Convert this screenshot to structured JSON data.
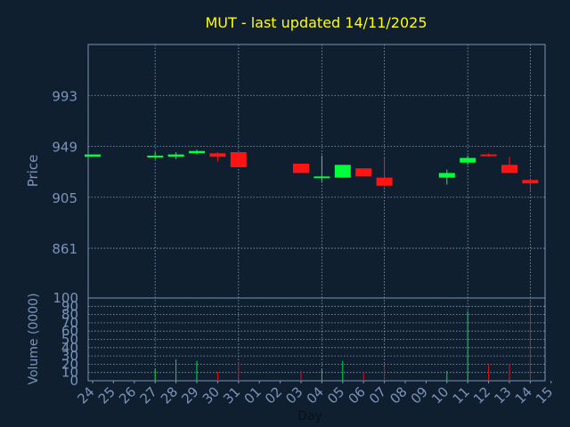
{
  "chart_data": {
    "type": "candlestick",
    "title": "MUT - last updated 14/11/2025",
    "xlabel": "Day",
    "colors": {
      "background": "#0f1f30",
      "title": "#ffff00",
      "axis_text": "#7b93b8",
      "frame": "#7b93b8",
      "grid": "#8aa0c0",
      "up": "#00ff3c",
      "down": "#ff1414",
      "volume_up": "#00e040",
      "volume_down": "#e01010"
    },
    "price_panel": {
      "ylabel": "Price",
      "ylim": [
        818,
        1037
      ],
      "yticks": [
        861,
        905,
        949,
        993
      ],
      "grid": true
    },
    "volume_panel": {
      "ylabel": "Volume (0000)",
      "ylim": [
        0,
        100
      ],
      "yticks": [
        0,
        10,
        20,
        30,
        40,
        50,
        60,
        70,
        80,
        90,
        100
      ],
      "grid": true
    },
    "x_ticks": [
      "24",
      "25",
      "26",
      "27",
      "28",
      "29",
      "30",
      "31",
      "01",
      "02",
      "03",
      "04",
      "05",
      "06",
      "07",
      "08",
      "09",
      "10",
      "11",
      "12",
      "13",
      "14",
      "15"
    ],
    "candles": [
      {
        "i": 0,
        "open": 940,
        "close": 942,
        "high": 942,
        "low": 940,
        "volume": 0
      },
      {
        "i": 3,
        "open": 940,
        "close": 941,
        "high": 944,
        "low": 938,
        "volume": 14
      },
      {
        "i": 4,
        "open": 940,
        "close": 942,
        "high": 944,
        "low": 938,
        "volume": 26
      },
      {
        "i": 5,
        "open": 943,
        "close": 945,
        "high": 946,
        "low": 942,
        "volume": 24
      },
      {
        "i": 6,
        "open": 943,
        "close": 940,
        "high": 944,
        "low": 936,
        "volume": 11
      },
      {
        "i": 7,
        "open": 944,
        "close": 931,
        "high": 944,
        "low": 931,
        "volume": 22
      },
      {
        "i": 10,
        "open": 934,
        "close": 926,
        "high": 934,
        "low": 926,
        "volume": 12
      },
      {
        "i": 11,
        "open": 922,
        "close": 923,
        "high": 941,
        "low": 918,
        "volume": 14
      },
      {
        "i": 12,
        "open": 922,
        "close": 933,
        "high": 933,
        "low": 922,
        "volume": 24
      },
      {
        "i": 13,
        "open": 930,
        "close": 923,
        "high": 930,
        "low": 923,
        "volume": 10
      },
      {
        "i": 14,
        "open": 922,
        "close": 915,
        "high": 940,
        "low": 914,
        "volume": 17
      },
      {
        "i": 17,
        "open": 922,
        "close": 926,
        "high": 929,
        "low": 916,
        "volume": 12
      },
      {
        "i": 18,
        "open": 935,
        "close": 939,
        "high": 941,
        "low": 933,
        "volume": 84
      },
      {
        "i": 19,
        "open": 942,
        "close": 941,
        "high": 943,
        "low": 940,
        "volume": 20
      },
      {
        "i": 20,
        "open": 933,
        "close": 926,
        "high": 940,
        "low": 926,
        "volume": 20
      },
      {
        "i": 21,
        "open": 920,
        "close": 917,
        "high": 920,
        "low": 910,
        "volume": 95
      }
    ]
  }
}
